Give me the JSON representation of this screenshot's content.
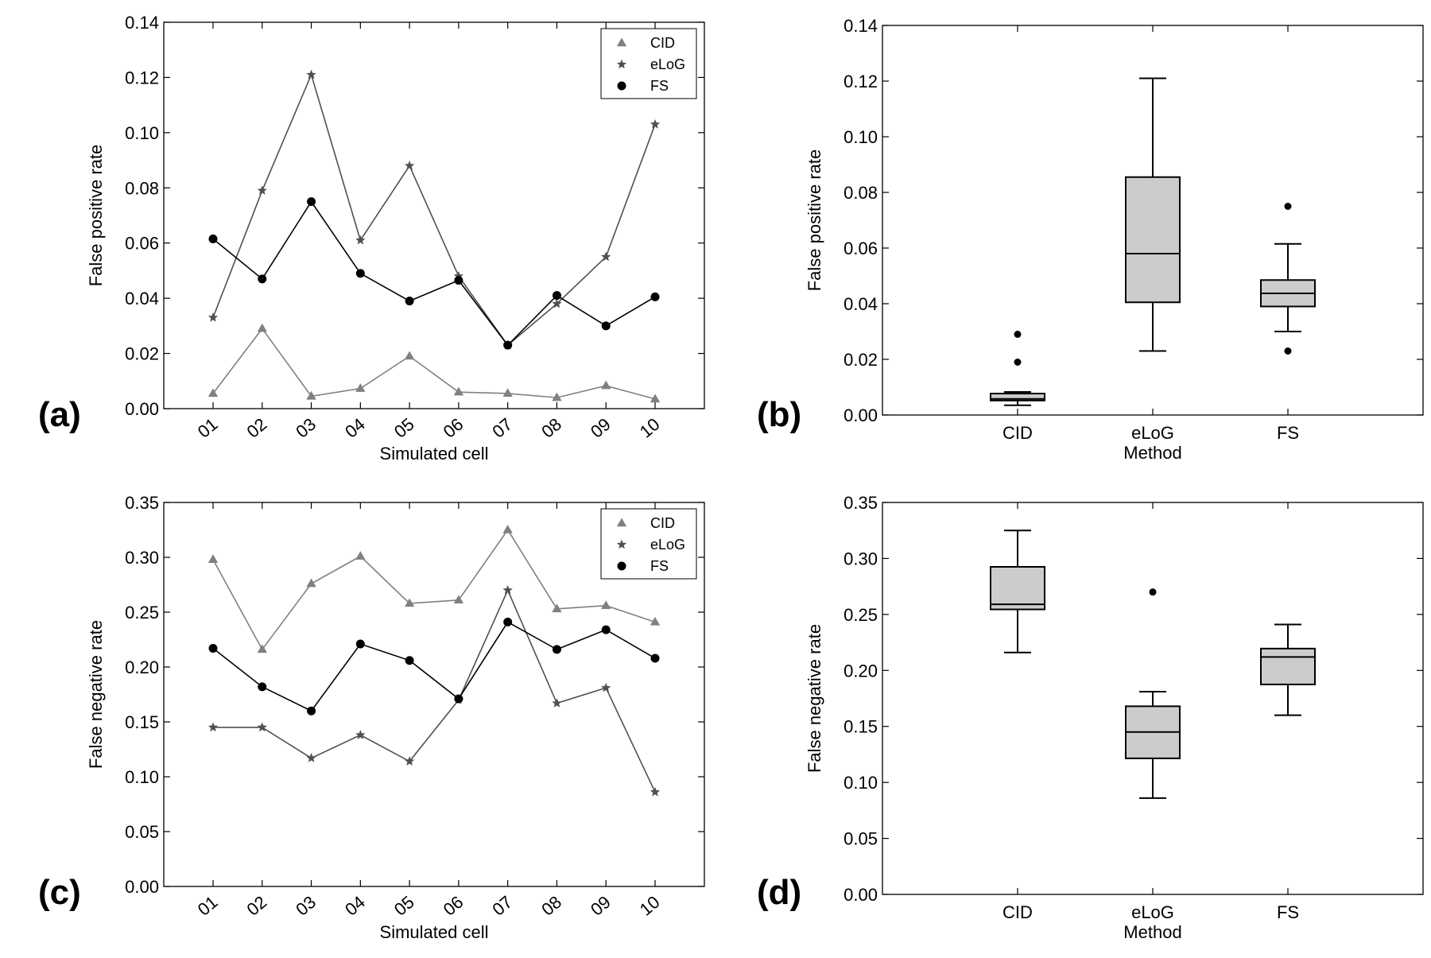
{
  "panels": [
    {
      "id": "a",
      "panel_label": "(a)",
      "chart_data": {
        "type": "line",
        "title": "",
        "xlabel": "Simulated cell",
        "ylabel": "False positive rate",
        "categories": [
          "01",
          "02",
          "03",
          "04",
          "05",
          "06",
          "07",
          "08",
          "09",
          "10"
        ],
        "ylim": [
          0,
          0.14
        ],
        "yticks": [
          "0.00",
          "0.02",
          "0.04",
          "0.06",
          "0.08",
          "0.10",
          "0.12",
          "0.14"
        ],
        "grid": false,
        "legend": "top-right",
        "series": [
          {
            "name": "CID",
            "marker": "triangle",
            "color": "#808080",
            "values": [
              0.0055,
              0.029,
              0.0045,
              0.0073,
              0.019,
              0.006,
              0.0055,
              0.004,
              0.0083,
              0.0035
            ]
          },
          {
            "name": "eLoG",
            "marker": "star",
            "color": "#505050",
            "values": [
              0.033,
              0.079,
              0.121,
              0.061,
              0.088,
              0.048,
              0.023,
              0.038,
              0.055,
              0.103
            ]
          },
          {
            "name": "FS",
            "marker": "circle",
            "color": "#000000",
            "values": [
              0.0615,
              0.047,
              0.075,
              0.049,
              0.039,
              0.0465,
              0.023,
              0.041,
              0.03,
              0.0405
            ]
          }
        ]
      }
    },
    {
      "id": "b",
      "panel_label": "(b)",
      "chart_data": {
        "type": "box",
        "title": "",
        "xlabel": "Method",
        "ylabel": "False positive rate",
        "categories": [
          "CID",
          "eLoG",
          "FS"
        ],
        "ylim": [
          0,
          0.14
        ],
        "yticks": [
          "0.00",
          "0.02",
          "0.04",
          "0.06",
          "0.08",
          "0.10",
          "0.12",
          "0.14"
        ],
        "grid": false,
        "box_color": "#cccccc",
        "boxes": [
          {
            "label": "CID",
            "whisker_low": 0.0035,
            "q1": 0.0052,
            "median": 0.0058,
            "q3": 0.0077,
            "whisker_high": 0.0083,
            "outliers": [
              0.019,
              0.029
            ]
          },
          {
            "label": "eLoG",
            "whisker_low": 0.023,
            "q1": 0.0405,
            "median": 0.058,
            "q3": 0.0855,
            "whisker_high": 0.121,
            "outliers": []
          },
          {
            "label": "FS",
            "whisker_low": 0.03,
            "q1": 0.039,
            "median": 0.0437,
            "q3": 0.0485,
            "whisker_high": 0.0615,
            "outliers": [
              0.023,
              0.075
            ]
          }
        ]
      }
    },
    {
      "id": "c",
      "panel_label": "(c)",
      "chart_data": {
        "type": "line",
        "title": "",
        "xlabel": "Simulated cell",
        "ylabel": "False negative rate",
        "categories": [
          "01",
          "02",
          "03",
          "04",
          "05",
          "06",
          "07",
          "08",
          "09",
          "10"
        ],
        "ylim": [
          0,
          0.35
        ],
        "yticks": [
          "0.00",
          "0.05",
          "0.10",
          "0.15",
          "0.20",
          "0.25",
          "0.30",
          "0.35"
        ],
        "grid": false,
        "legend": "top-right",
        "series": [
          {
            "name": "CID",
            "marker": "triangle",
            "color": "#808080",
            "values": [
              0.298,
              0.216,
              0.276,
              0.301,
              0.258,
              0.261,
              0.325,
              0.253,
              0.256,
              0.241
            ]
          },
          {
            "name": "eLoG",
            "marker": "star",
            "color": "#505050",
            "values": [
              0.145,
              0.145,
              0.117,
              0.138,
              0.114,
              0.17,
              0.27,
              0.167,
              0.181,
              0.086
            ]
          },
          {
            "name": "FS",
            "marker": "circle",
            "color": "#000000",
            "values": [
              0.217,
              0.182,
              0.16,
              0.221,
              0.206,
              0.171,
              0.241,
              0.216,
              0.234,
              0.208
            ]
          }
        ]
      }
    },
    {
      "id": "d",
      "panel_label": "(d)",
      "chart_data": {
        "type": "box",
        "title": "",
        "xlabel": "Method",
        "ylabel": "False negative rate",
        "categories": [
          "CID",
          "eLoG",
          "FS"
        ],
        "ylim": [
          0,
          0.35
        ],
        "yticks": [
          "0.00",
          "0.05",
          "0.10",
          "0.15",
          "0.20",
          "0.25",
          "0.30",
          "0.35"
        ],
        "grid": false,
        "box_color": "#cccccc",
        "boxes": [
          {
            "label": "CID",
            "whisker_low": 0.216,
            "q1": 0.2545,
            "median": 0.259,
            "q3": 0.2925,
            "whisker_high": 0.325,
            "outliers": []
          },
          {
            "label": "eLoG",
            "whisker_low": 0.086,
            "q1": 0.1215,
            "median": 0.145,
            "q3": 0.168,
            "whisker_high": 0.181,
            "outliers": [
              0.27
            ]
          },
          {
            "label": "FS",
            "whisker_low": 0.16,
            "q1": 0.1875,
            "median": 0.212,
            "q3": 0.2195,
            "whisker_high": 0.241,
            "outliers": []
          }
        ]
      }
    }
  ]
}
